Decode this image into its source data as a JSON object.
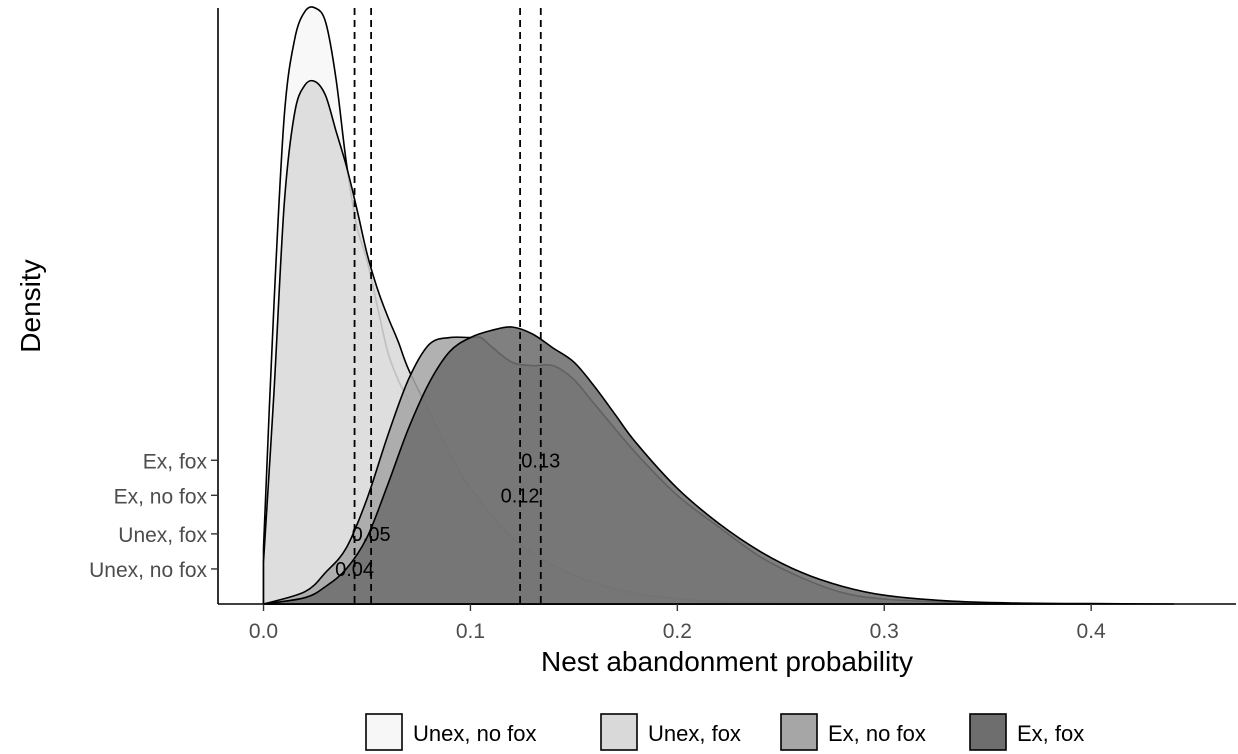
{
  "chart_data": {
    "type": "area",
    "title": "",
    "xlabel": "Nest abandonment probability",
    "ylabel": "Density",
    "xlim": [
      -0.022,
      0.47
    ],
    "ylim": [
      0,
      17
    ],
    "x_ticks": [
      0.0,
      0.1,
      0.2,
      0.3,
      0.4
    ],
    "x_tick_labels": [
      "0.0",
      "0.1",
      "0.2",
      "0.3",
      "0.4"
    ],
    "y_tick_labels": [
      "Unex, no fox",
      "Unex, fox",
      "Ex, no fox",
      "Ex, fox"
    ],
    "y_tick_values": [
      1.0,
      2.0,
      3.1,
      4.1
    ],
    "legend_position": "bottom",
    "grid": false,
    "series": [
      {
        "name": "Unex, no fox",
        "color": "#f7f7f7",
        "x": [
          0.0,
          0.005,
          0.01,
          0.015,
          0.02,
          0.025,
          0.03,
          0.035,
          0.04,
          0.045,
          0.05,
          0.055,
          0.06,
          0.065,
          0.07,
          0.08,
          0.09,
          0.1,
          0.12,
          0.14,
          0.16,
          0.18,
          0.2,
          0.22,
          0.25,
          0.3
        ],
        "values": [
          1.6,
          8.5,
          13.9,
          16.1,
          16.9,
          17.0,
          16.6,
          15.0,
          12.6,
          10.8,
          9.8,
          8.5,
          7.2,
          6.4,
          5.8,
          4.4,
          3.3,
          2.5,
          1.45,
          0.85,
          0.45,
          0.25,
          0.13,
          0.06,
          0.02,
          0.0
        ]
      },
      {
        "name": "Unex, fox",
        "color": "#d9d9d9",
        "x": [
          0.0,
          0.005,
          0.01,
          0.015,
          0.02,
          0.025,
          0.03,
          0.035,
          0.04,
          0.045,
          0.05,
          0.055,
          0.06,
          0.065,
          0.07,
          0.08,
          0.09,
          0.1,
          0.12,
          0.14,
          0.16,
          0.18,
          0.2,
          0.22,
          0.25,
          0.3
        ],
        "values": [
          1.2,
          6.0,
          11.4,
          14.0,
          14.8,
          14.9,
          14.5,
          13.5,
          12.5,
          11.3,
          10.0,
          9.0,
          8.2,
          7.5,
          6.7,
          5.5,
          4.3,
          3.3,
          1.9,
          1.1,
          0.6,
          0.3,
          0.15,
          0.07,
          0.02,
          0.0
        ]
      },
      {
        "name": "Ex, no fox",
        "color": "#a6a6a6",
        "x": [
          0.0,
          0.02,
          0.03,
          0.04,
          0.05,
          0.06,
          0.07,
          0.08,
          0.09,
          0.1,
          0.105,
          0.11,
          0.12,
          0.13,
          0.14,
          0.15,
          0.16,
          0.18,
          0.2,
          0.22,
          0.24,
          0.26,
          0.28,
          0.3,
          0.33,
          0.36,
          0.4
        ],
        "values": [
          0.0,
          0.35,
          0.9,
          1.6,
          3.0,
          4.8,
          6.4,
          7.4,
          7.6,
          7.6,
          7.6,
          7.35,
          6.9,
          6.8,
          6.8,
          6.4,
          5.7,
          4.3,
          3.1,
          2.2,
          1.35,
          0.75,
          0.32,
          0.14,
          0.05,
          0.02,
          0.0
        ]
      },
      {
        "name": "Ex, fox",
        "color": "#6e6e6e",
        "x": [
          0.0,
          0.02,
          0.03,
          0.04,
          0.05,
          0.06,
          0.07,
          0.08,
          0.09,
          0.1,
          0.11,
          0.12,
          0.13,
          0.14,
          0.15,
          0.16,
          0.17,
          0.18,
          0.2,
          0.22,
          0.24,
          0.26,
          0.28,
          0.3,
          0.33,
          0.36,
          0.4,
          0.44
        ],
        "values": [
          0.0,
          0.18,
          0.5,
          1.0,
          1.9,
          3.4,
          5.0,
          6.3,
          7.2,
          7.6,
          7.8,
          7.9,
          7.7,
          7.3,
          6.9,
          6.2,
          5.4,
          4.6,
          3.3,
          2.3,
          1.5,
          0.9,
          0.5,
          0.25,
          0.09,
          0.03,
          0.01,
          0.0
        ]
      }
    ],
    "mean_lines": [
      0.044,
      0.052,
      0.124,
      0.134
    ],
    "mean_labels": [
      {
        "text": "0.04",
        "x": 0.044,
        "y": 1.0
      },
      {
        "text": "0.05",
        "x": 0.052,
        "y": 2.0
      },
      {
        "text": "0.12",
        "x": 0.124,
        "y": 3.1
      },
      {
        "text": "0.13",
        "x": 0.134,
        "y": 4.1
      }
    ]
  }
}
